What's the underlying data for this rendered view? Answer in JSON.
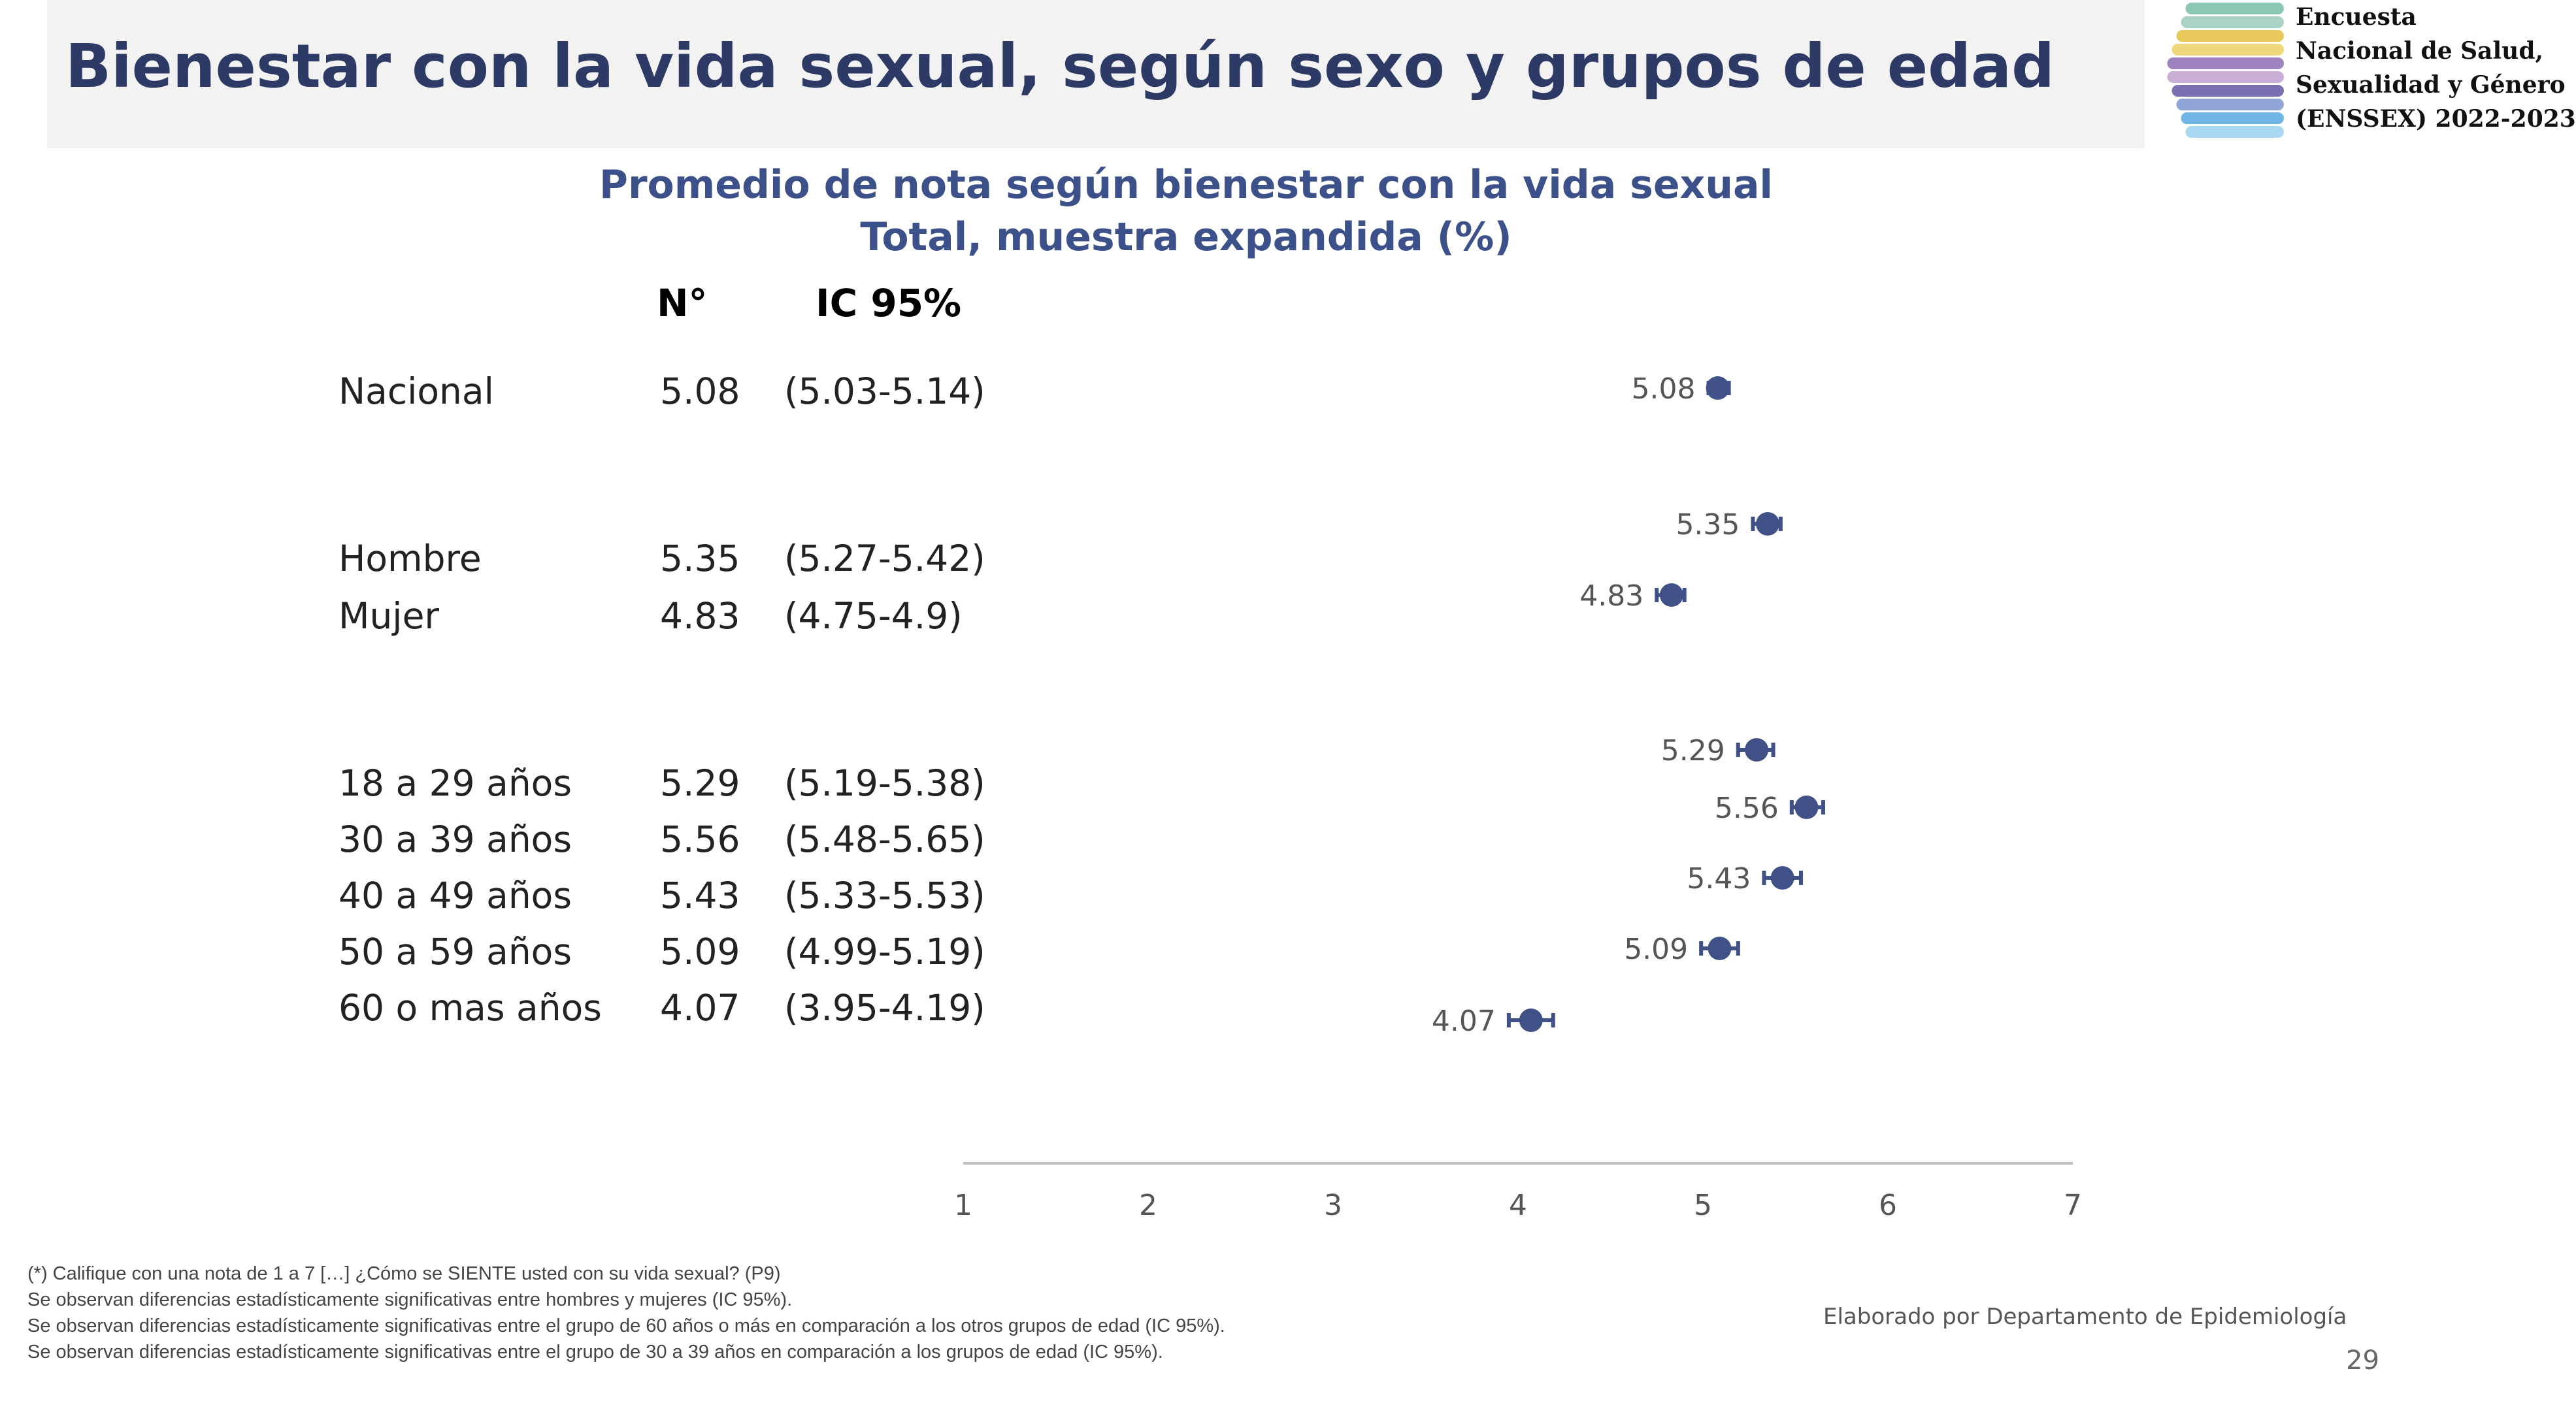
{
  "header": {
    "title": "Bienestar con la vida sexual, según sexo y grupos de edad"
  },
  "logo": {
    "lines": [
      "Encuesta",
      "Nacional de Salud,",
      "Sexualidad y Género",
      "(ENSSEX) 2022-2023"
    ],
    "stripe_colors": [
      "#8cc7b5",
      "#a9d3c4",
      "#e8c85a",
      "#f0d77c",
      "#9e83bf",
      "#c9aed6",
      "#7a6fb0",
      "#8fa6d6",
      "#6fb6e4",
      "#a9d8f2"
    ]
  },
  "table": {
    "col_n": "N°",
    "col_ci": "IC 95%"
  },
  "chart_data": {
    "type": "scatter",
    "title": "Promedio de nota según bienestar con la vida sexual",
    "subtitle": "Total, muestra expandida (%)",
    "xlim": [
      1,
      7
    ],
    "x_ticks": [
      "1",
      "2",
      "3",
      "4",
      "5",
      "6",
      "7"
    ],
    "marker_color": "#3f5186",
    "axis_color": "#bfbfbf",
    "rows": [
      {
        "label": "Nacional",
        "value": 5.08,
        "value_text": "5.08",
        "ci_text": "(5.03-5.14)",
        "ci_low": 5.03,
        "ci_high": 5.14
      },
      {
        "label": "Hombre",
        "value": 5.35,
        "value_text": "5.35",
        "ci_text": "(5.27-5.42)",
        "ci_low": 5.27,
        "ci_high": 5.42
      },
      {
        "label": "Mujer",
        "value": 4.83,
        "value_text": "4.83",
        "ci_text": "(4.75-4.9)",
        "ci_low": 4.75,
        "ci_high": 4.9
      },
      {
        "label": "18 a 29 años",
        "value": 5.29,
        "value_text": "5.29",
        "ci_text": "(5.19-5.38)",
        "ci_low": 5.19,
        "ci_high": 5.38
      },
      {
        "label": "30 a 39 años",
        "value": 5.56,
        "value_text": "5.56",
        "ci_text": "(5.48-5.65)",
        "ci_low": 5.48,
        "ci_high": 5.65
      },
      {
        "label": "40 a 49 años",
        "value": 5.43,
        "value_text": "5.43",
        "ci_text": "(5.33-5.53)",
        "ci_low": 5.33,
        "ci_high": 5.53
      },
      {
        "label": "50 a 59 años",
        "value": 5.09,
        "value_text": "5.09",
        "ci_text": "(4.99-5.19)",
        "ci_low": 4.99,
        "ci_high": 5.19
      },
      {
        "label": "60 o mas años",
        "value": 4.07,
        "value_text": "4.07",
        "ci_text": "(3.95-4.19)",
        "ci_low": 3.95,
        "ci_high": 4.19
      }
    ]
  },
  "footnotes": [
    "(*) Califique con una nota de 1 a 7 […] ¿Cómo se SIENTE usted con su vida sexual? (P9)",
    "Se observan diferencias estadísticamente significativas entre hombres  y mujeres (IC 95%).",
    "Se observan diferencias estadísticamente significativas entre el grupo de 60 años o más en  comparación a los otros grupos de edad (IC 95%).",
    "Se observan diferencias estadísticamente significativas entre el grupo de  30 a 39 años en  comparación a los grupos de edad  (IC 95%)."
  ],
  "credit": "Elaborado por Departamento de Epidemiología",
  "page_number": "29"
}
